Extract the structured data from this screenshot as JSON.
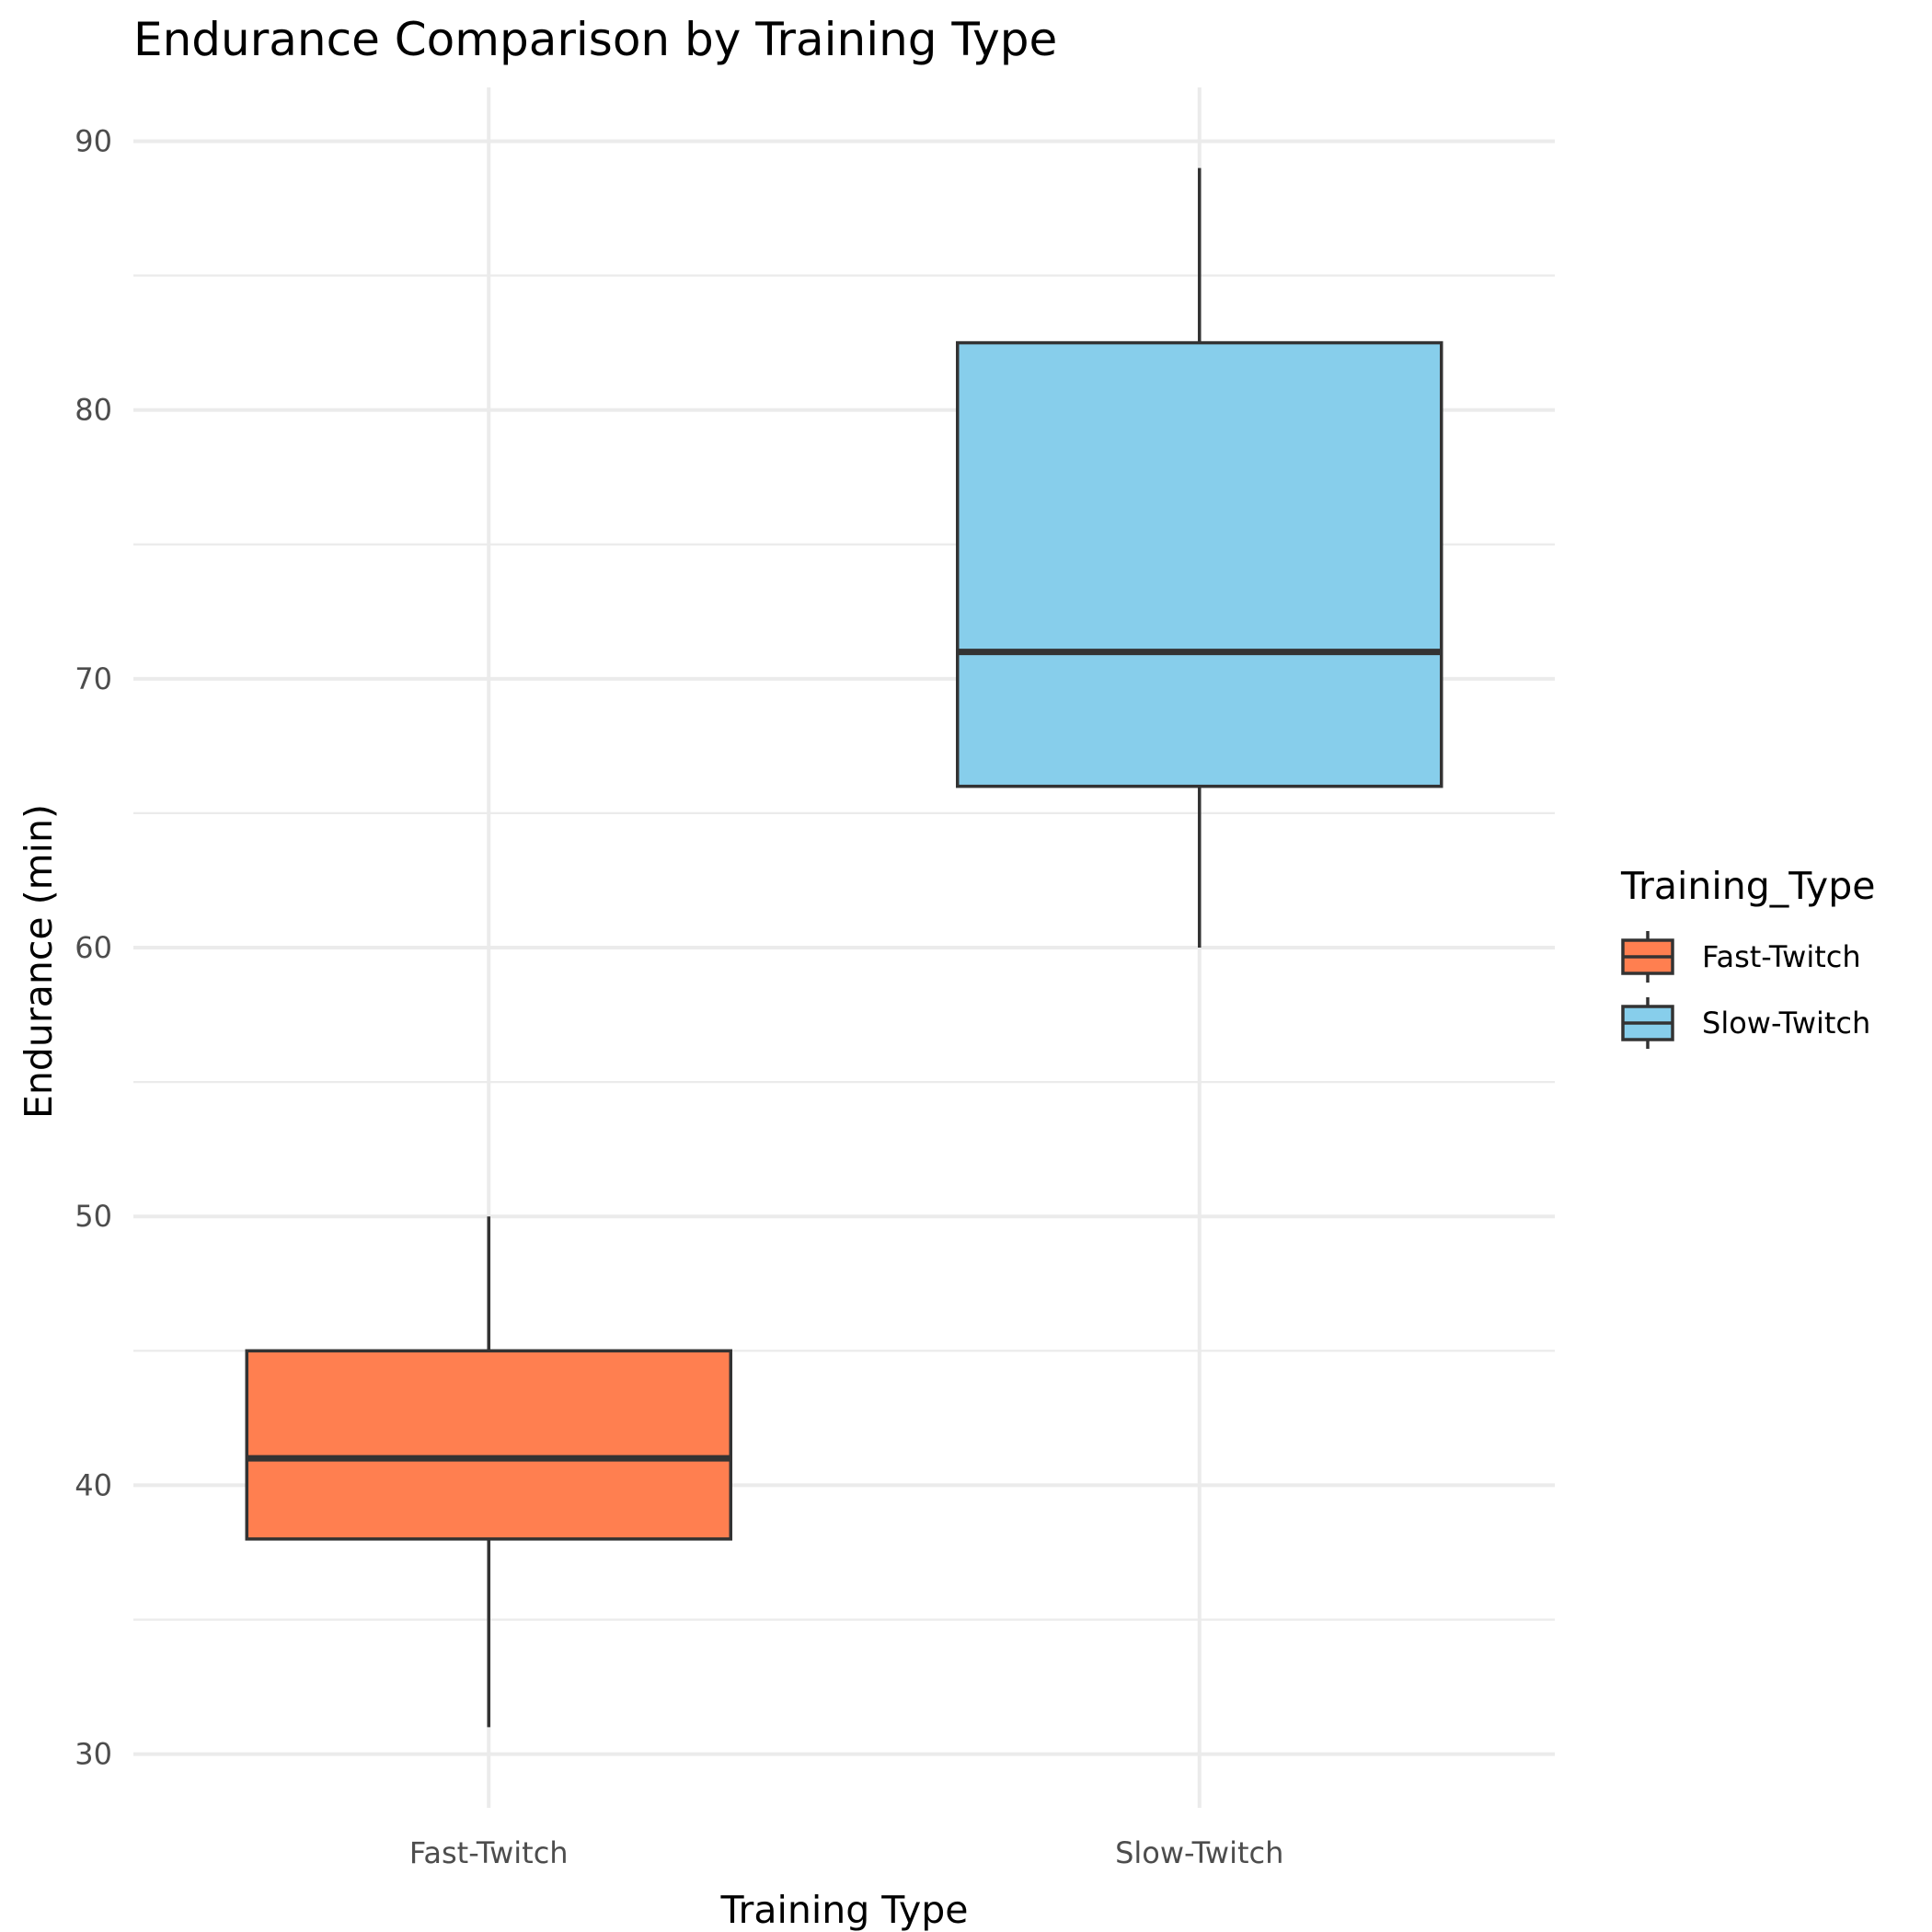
{
  "chart_data": {
    "type": "box",
    "title": "Endurance Comparison by Training Type",
    "xlabel": "Training Type",
    "ylabel": "Endurance (min)",
    "ylim": [
      28,
      92
    ],
    "yticks": [
      30,
      40,
      50,
      60,
      70,
      80,
      90
    ],
    "categories": [
      "Fast-Twitch",
      "Slow-Twitch"
    ],
    "boxes": [
      {
        "category": "Fast-Twitch",
        "min": 31,
        "q1": 38,
        "median": 41,
        "q3": 45,
        "max": 50,
        "color": "#FF7F50"
      },
      {
        "category": "Slow-Twitch",
        "min": 60,
        "q1": 66,
        "median": 71,
        "q3": 82.5,
        "max": 89,
        "color": "#87CEEB"
      }
    ],
    "legend": {
      "title": "Training_Type",
      "position": "right",
      "items": [
        {
          "label": "Fast-Twitch",
          "color": "#FF7F50"
        },
        {
          "label": "Slow-Twitch",
          "color": "#87CEEB"
        }
      ]
    },
    "grid": true,
    "colors": {
      "grid": "#ebebeb",
      "outline": "#333333"
    }
  }
}
